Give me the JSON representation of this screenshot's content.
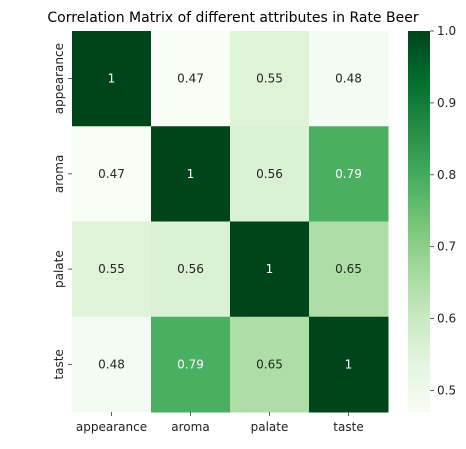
{
  "chart_data": {
    "type": "heatmap",
    "title": "Correlation Matrix of different attributes in Rate Beer",
    "rows": [
      "appearance",
      "aroma",
      "palate",
      "taste"
    ],
    "columns": [
      "appearance",
      "aroma",
      "palate",
      "taste"
    ],
    "values": [
      [
        1,
        0.47,
        0.55,
        0.48
      ],
      [
        0.47,
        1,
        0.56,
        0.79
      ],
      [
        0.55,
        0.56,
        1,
        0.65
      ],
      [
        0.48,
        0.79,
        0.65,
        1
      ]
    ],
    "cell_labels": [
      [
        "1",
        "0.47",
        "0.55",
        "0.48"
      ],
      [
        "0.47",
        "1",
        "0.56",
        "0.79"
      ],
      [
        "0.55",
        "0.56",
        "1",
        "0.65"
      ],
      [
        "0.48",
        "0.79",
        "0.65",
        "1"
      ]
    ],
    "colormap": "Greens",
    "vmin": 0.47,
    "vmax": 1.0,
    "colorbar_ticks": [
      0.5,
      0.6,
      0.7,
      0.8,
      0.9,
      1.0
    ],
    "colorbar_tick_labels": [
      "0.5",
      "0.6",
      "0.7",
      "0.8",
      "0.9",
      "1.0"
    ]
  }
}
